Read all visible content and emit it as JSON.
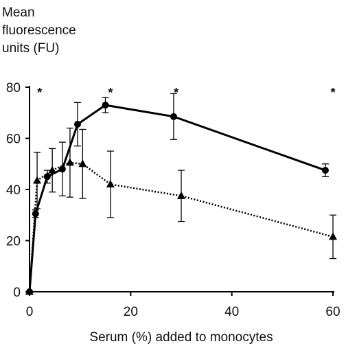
{
  "chart_data": {
    "type": "line",
    "ylabel_lines": [
      "Mean",
      "fluorescence",
      "units (FU)"
    ],
    "xlabel": "Serum (%) added to monocytes",
    "xlim": [
      0,
      60
    ],
    "ylim": [
      0,
      80
    ],
    "x_ticks": [
      0,
      20,
      40,
      60
    ],
    "y_ticks": [
      0,
      20,
      40,
      60,
      80
    ],
    "grid": false,
    "significance_marks": [
      {
        "x": 2,
        "label": "*"
      },
      {
        "x": 16,
        "label": "*"
      },
      {
        "x": 29,
        "label": "*"
      },
      {
        "x": 60,
        "label": "*"
      }
    ],
    "series": [
      {
        "marker": "circle",
        "line_style": "solid",
        "points": [
          {
            "x": 0,
            "y": 0,
            "err": 0
          },
          {
            "x": 1.2,
            "y": 30.5,
            "err": 1.5
          },
          {
            "x": 3.5,
            "y": 45,
            "err": 2.5
          },
          {
            "x": 6.5,
            "y": 48,
            "err": 10.5
          },
          {
            "x": 9.5,
            "y": 65.5,
            "err": 8.5
          },
          {
            "x": 15,
            "y": 73,
            "err": 3
          },
          {
            "x": 28.5,
            "y": 68.5,
            "err": 9
          },
          {
            "x": 58.5,
            "y": 47.5,
            "err": 2.5
          }
        ]
      },
      {
        "marker": "triangle",
        "line_style": "dotted",
        "points": [
          {
            "x": 0,
            "y": 0,
            "err": 0
          },
          {
            "x": 1.5,
            "y": 43.5,
            "err": 11
          },
          {
            "x": 4.5,
            "y": 47.5,
            "err": 8.5
          },
          {
            "x": 8,
            "y": 50.5,
            "err": 13.5
          },
          {
            "x": 10.5,
            "y": 50,
            "err": 13.5
          },
          {
            "x": 16,
            "y": 42,
            "err": 13
          },
          {
            "x": 30,
            "y": 37.5,
            "err": 10
          },
          {
            "x": 60,
            "y": 21.5,
            "err": 8.5
          }
        ]
      }
    ]
  }
}
